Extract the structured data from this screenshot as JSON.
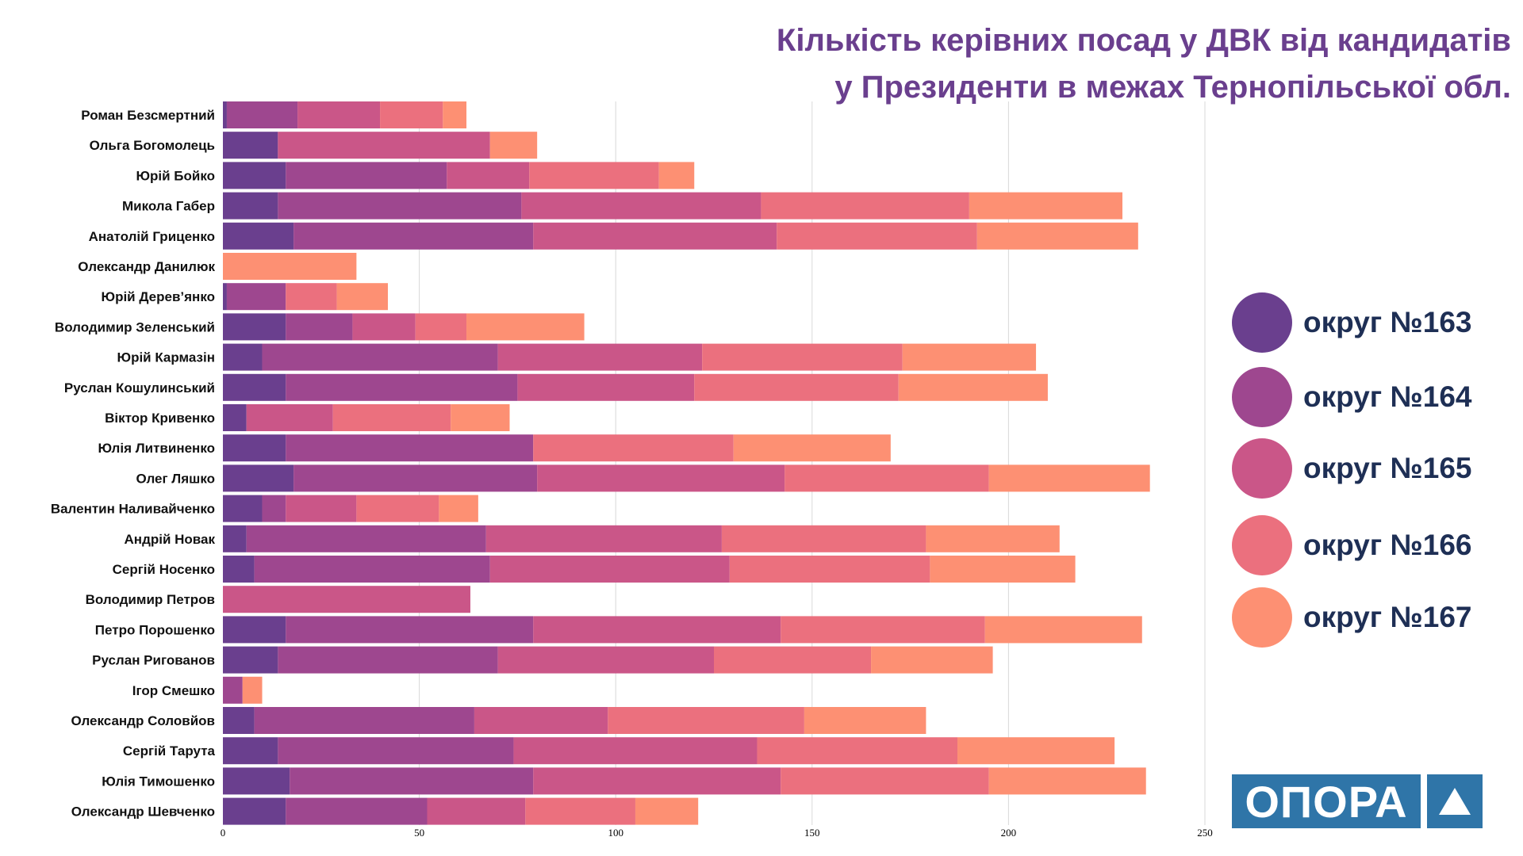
{
  "chart_data": {
    "type": "bar",
    "orientation": "horizontal",
    "stacked": true,
    "title": "Кількість керівних посад у ДВК від кандидатів у Президенти в межах Тернопільської обл.",
    "title_lines": [
      "Кількість керівних посад у ДВК від кандидатів",
      "у Президенти в межах Тернопільської обл."
    ],
    "xlim": [
      0,
      250
    ],
    "xticks": [
      0,
      50,
      100,
      150,
      200,
      250
    ],
    "grid": true,
    "legend_position": "right",
    "categories": [
      "Роман Безсмертний",
      "Ольга Богомолець",
      "Юрій Бойко",
      "Микола Габер",
      "Анатолій Гриценко",
      "Олександр Данилюк",
      "Юрій Дерев’янко",
      "Володимир Зеленський",
      "Юрій Кармазін",
      "Руслан Кошулинський",
      "Віктор Кривенко",
      "Юлія Литвиненко",
      "Олег Ляшко",
      "Валентин Наливайченко",
      "Андрій Новак",
      "Сергій Носенко",
      "Володимир Петров",
      "Петро Порошенко",
      "Руслан Ригованов",
      "Ігор Смешко",
      "Олександр Соловйов",
      "Сергій Тарута",
      "Юлія Тимошенко",
      "Олександр Шевченко"
    ],
    "series": [
      {
        "name": "округ №163",
        "color": "#6a3f8e",
        "values": [
          1,
          14,
          16,
          14,
          18,
          0,
          1,
          16,
          10,
          16,
          6,
          16,
          18,
          10,
          6,
          8,
          0,
          16,
          14,
          0,
          8,
          14,
          17,
          16
        ]
      },
      {
        "name": "округ №164",
        "color": "#9e478f",
        "values": [
          18,
          0,
          41,
          62,
          61,
          0,
          15,
          17,
          60,
          59,
          0,
          63,
          62,
          6,
          61,
          60,
          0,
          63,
          56,
          5,
          56,
          60,
          62,
          36
        ]
      },
      {
        "name": "округ №165",
        "color": "#ca5688",
        "values": [
          21,
          54,
          21,
          61,
          62,
          0,
          0,
          16,
          52,
          45,
          22,
          0,
          63,
          18,
          60,
          61,
          63,
          63,
          55,
          0,
          34,
          62,
          63,
          25
        ]
      },
      {
        "name": "округ №166",
        "color": "#eb707e",
        "values": [
          16,
          0,
          33,
          53,
          51,
          0,
          13,
          13,
          51,
          52,
          30,
          51,
          52,
          21,
          52,
          51,
          0,
          52,
          40,
          0,
          50,
          51,
          53,
          28
        ]
      },
      {
        "name": "округ №167",
        "color": "#fd9073",
        "values": [
          6,
          12,
          9,
          39,
          41,
          34,
          13,
          30,
          34,
          38,
          15,
          40,
          41,
          10,
          34,
          37,
          0,
          40,
          31,
          5,
          31,
          40,
          40,
          16
        ]
      }
    ]
  },
  "logo": {
    "text": "ОПОРА"
  }
}
